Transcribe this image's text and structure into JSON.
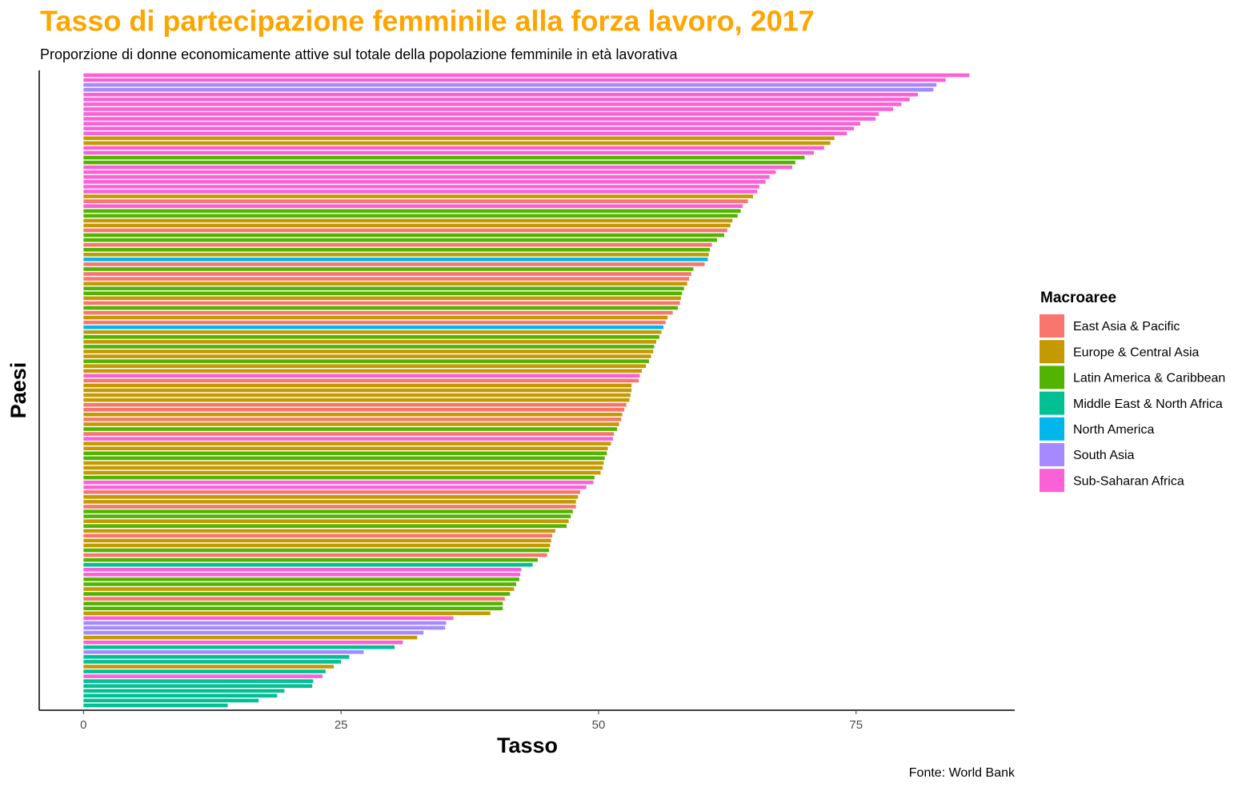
{
  "chart_data": {
    "type": "bar",
    "orientation": "horizontal",
    "title": "Tasso di partecipazione femminile alla forza lavoro, 2017",
    "subtitle": "Proporzione di donne economicamente attive sul totale della popolazione femminile in età lavorativa",
    "x_label": "Tasso",
    "y_label": "Paesi",
    "caption": "Fonte: World Bank",
    "legend_title": "Macroaree",
    "legend_position": "right",
    "legend": [
      {
        "name": "East Asia & Pacific",
        "color": "#F8766D"
      },
      {
        "name": "Europe & Central Asia",
        "color": "#C49A00"
      },
      {
        "name": "Latin America & Caribbean",
        "color": "#53B400"
      },
      {
        "name": "Middle East & North Africa",
        "color": "#00C094"
      },
      {
        "name": "North America",
        "color": "#00B6EB"
      },
      {
        "name": "South Asia",
        "color": "#A58AFF"
      },
      {
        "name": "Sub-Saharan Africa",
        "color": "#FB61D7"
      }
    ],
    "values": [
      86.0,
      83.7,
      82.8,
      82.5,
      81.0,
      80.2,
      79.4,
      78.6,
      77.2,
      76.9,
      75.4,
      74.8,
      74.1,
      72.9,
      72.5,
      71.9,
      70.9,
      70.0,
      69.1,
      68.8,
      67.2,
      66.6,
      66.2,
      65.6,
      65.4,
      65.0,
      64.5,
      64.0,
      63.8,
      63.5,
      63.0,
      62.8,
      62.5,
      62.2,
      61.5,
      61.0,
      60.8,
      60.7,
      60.6,
      60.3,
      59.2,
      59.0,
      58.8,
      58.6,
      58.3,
      58.1,
      58.0,
      57.9,
      57.7,
      57.2,
      56.7,
      56.5,
      56.3,
      56.1,
      55.9,
      55.6,
      55.4,
      55.3,
      55.1,
      54.9,
      54.6,
      54.2,
      54.0,
      53.9,
      53.2,
      53.2,
      53.1,
      53.0,
      52.7,
      52.5,
      52.3,
      52.2,
      52.0,
      51.8,
      51.5,
      51.4,
      51.2,
      50.9,
      50.8,
      50.6,
      50.5,
      50.4,
      50.2,
      49.6,
      49.5,
      48.8,
      48.2,
      48.0,
      47.8,
      47.8,
      47.5,
      47.3,
      47.1,
      46.9,
      45.8,
      45.5,
      45.4,
      45.3,
      45.2,
      45.0,
      44.1,
      43.6,
      42.5,
      42.4,
      42.3,
      42.0,
      41.8,
      41.4,
      40.9,
      40.7,
      40.7,
      39.5,
      35.9,
      35.2,
      35.1,
      33.0,
      32.4,
      31.0,
      30.2,
      27.2,
      25.8,
      25.0,
      24.3,
      23.5,
      23.2,
      22.3,
      22.2,
      19.5,
      18.8,
      17.0,
      14.0
    ],
    "groups": [
      "Sub-Saharan Africa",
      "Sub-Saharan Africa",
      "South Asia",
      "South Asia",
      "Sub-Saharan Africa",
      "Sub-Saharan Africa",
      "Sub-Saharan Africa",
      "Sub-Saharan Africa",
      "Sub-Saharan Africa",
      "Sub-Saharan Africa",
      "Sub-Saharan Africa",
      "Sub-Saharan Africa",
      "Sub-Saharan Africa",
      "Europe & Central Asia",
      "Europe & Central Asia",
      "Sub-Saharan Africa",
      "Sub-Saharan Africa",
      "Latin America & Caribbean",
      "Latin America & Caribbean",
      "Sub-Saharan Africa",
      "Sub-Saharan Africa",
      "Sub-Saharan Africa",
      "Sub-Saharan Africa",
      "Sub-Saharan Africa",
      "Sub-Saharan Africa",
      "Europe & Central Asia",
      "East Asia & Pacific",
      "Sub-Saharan Africa",
      "Latin America & Caribbean",
      "Latin America & Caribbean",
      "Europe & Central Asia",
      "Europe & Central Asia",
      "East Asia & Pacific",
      "Latin America & Caribbean",
      "Latin America & Caribbean",
      "East Asia & Pacific",
      "Latin America & Caribbean",
      "Europe & Central Asia",
      "North America",
      "East Asia & Pacific",
      "Latin America & Caribbean",
      "East Asia & Pacific",
      "East Asia & Pacific",
      "Europe & Central Asia",
      "Latin America & Caribbean",
      "Latin America & Caribbean",
      "Europe & Central Asia",
      "East Asia & Pacific",
      "Latin America & Caribbean",
      "East Asia & Pacific",
      "Europe & Central Asia",
      "East Asia & Pacific",
      "North America",
      "Europe & Central Asia",
      "Latin America & Caribbean",
      "Europe & Central Asia",
      "Latin America & Caribbean",
      "Europe & Central Asia",
      "Europe & Central Asia",
      "Latin America & Caribbean",
      "Europe & Central Asia",
      "Europe & Central Asia",
      "Sub-Saharan Africa",
      "East Asia & Pacific",
      "Europe & Central Asia",
      "Europe & Central Asia",
      "Europe & Central Asia",
      "Europe & Central Asia",
      "East Asia & Pacific",
      "East Asia & Pacific",
      "Europe & Central Asia",
      "East Asia & Pacific",
      "Europe & Central Asia",
      "Latin America & Caribbean",
      "East Asia & Pacific",
      "Sub-Saharan Africa",
      "Europe & Central Asia",
      "Europe & Central Asia",
      "Latin America & Caribbean",
      "Latin America & Caribbean",
      "Europe & Central Asia",
      "Europe & Central Asia",
      "Europe & Central Asia",
      "Latin America & Caribbean",
      "Sub-Saharan Africa",
      "Sub-Saharan Africa",
      "East Asia & Pacific",
      "Europe & Central Asia",
      "Europe & Central Asia",
      "East Asia & Pacific",
      "Latin America & Caribbean",
      "Latin America & Caribbean",
      "Europe & Central Asia",
      "Latin America & Caribbean",
      "Europe & Central Asia",
      "East Asia & Pacific",
      "Europe & Central Asia",
      "Europe & Central Asia",
      "Latin America & Caribbean",
      "East Asia & Pacific",
      "Latin America & Caribbean",
      "Middle East & North Africa",
      "Sub-Saharan Africa",
      "Sub-Saharan Africa",
      "Latin America & Caribbean",
      "Latin America & Caribbean",
      "Europe & Central Asia",
      "Latin America & Caribbean",
      "East Asia & Pacific",
      "Latin America & Caribbean",
      "Latin America & Caribbean",
      "Europe & Central Asia",
      "Sub-Saharan Africa",
      "South Asia",
      "South Asia",
      "South Asia",
      "Europe & Central Asia",
      "Sub-Saharan Africa",
      "Middle East & North Africa",
      "South Asia",
      "Middle East & North Africa",
      "Middle East & North Africa",
      "Europe & Central Asia",
      "Middle East & North Africa",
      "Sub-Saharan Africa",
      "Middle East & North Africa",
      "Middle East & North Africa",
      "Middle East & North Africa",
      "Middle East & North Africa",
      "Middle East & North Africa",
      "Middle East & North Africa"
    ],
    "xlim": [
      -4.3,
      90.4
    ],
    "xticks": [
      0,
      25,
      50,
      75
    ],
    "grid": false
  }
}
